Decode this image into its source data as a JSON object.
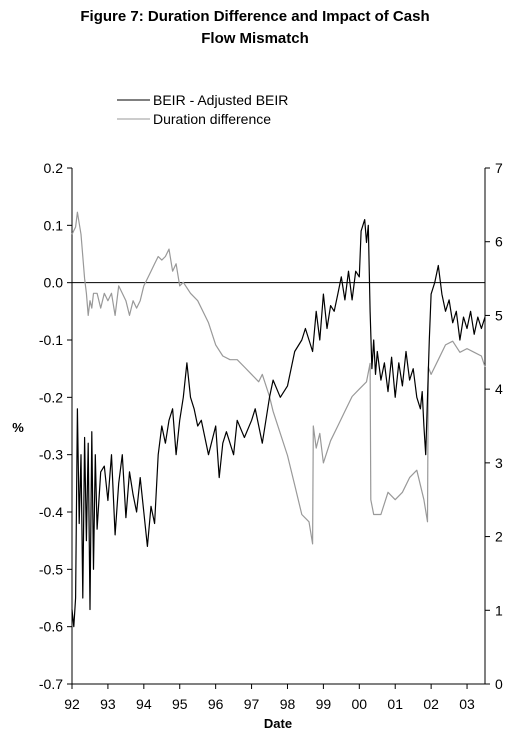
{
  "chart_data": {
    "type": "line",
    "title_line1": "Figure 7: Duration Difference and Impact of Cash",
    "title_line2": "Flow Mismatch",
    "xlabel": "Date",
    "ylabel": "%",
    "x_ticks": [
      "92",
      "93",
      "94",
      "95",
      "96",
      "97",
      "98",
      "99",
      "00",
      "01",
      "02",
      "03"
    ],
    "x_tick_years": [
      1992,
      1993,
      1994,
      1995,
      1996,
      1997,
      1998,
      1999,
      2000,
      2001,
      2002,
      2003
    ],
    "xlim": [
      1992,
      2003.5
    ],
    "left_ylim": [
      -0.7,
      0.2
    ],
    "left_ticks": [
      "0.2",
      "0.1",
      "0.0",
      "-0.1",
      "-0.2",
      "-0.3",
      "-0.4",
      "-0.5",
      "-0.6",
      "-0.7"
    ],
    "left_tick_values": [
      0.2,
      0.1,
      0.0,
      -0.1,
      -0.2,
      -0.3,
      -0.4,
      -0.5,
      -0.6,
      -0.7
    ],
    "right_ylim": [
      0,
      7
    ],
    "right_ticks": [
      "7",
      "6",
      "5",
      "4",
      "3",
      "2",
      "1",
      "0"
    ],
    "right_tick_values": [
      7,
      6,
      5,
      4,
      3,
      2,
      1,
      0
    ],
    "legend": [
      "BEIR - Adjusted BEIR",
      "Duration difference"
    ],
    "series": [
      {
        "name": "BEIR - Adjusted BEIR",
        "axis": "left",
        "color": "#000000",
        "x": [
          1992.0,
          1992.05,
          1992.1,
          1992.15,
          1992.2,
          1992.25,
          1992.3,
          1992.35,
          1992.4,
          1992.45,
          1992.5,
          1992.55,
          1992.6,
          1992.65,
          1992.7,
          1992.8,
          1992.9,
          1993.0,
          1993.1,
          1993.2,
          1993.3,
          1993.4,
          1993.5,
          1993.6,
          1993.7,
          1993.8,
          1993.9,
          1994.0,
          1994.1,
          1994.2,
          1994.3,
          1994.4,
          1994.5,
          1994.6,
          1994.7,
          1994.8,
          1994.9,
          1995.0,
          1995.1,
          1995.2,
          1995.3,
          1995.4,
          1995.5,
          1995.6,
          1995.8,
          1996.0,
          1996.1,
          1996.2,
          1996.3,
          1996.5,
          1996.6,
          1996.8,
          1997.0,
          1997.1,
          1997.3,
          1997.5,
          1997.6,
          1997.8,
          1998.0,
          1998.2,
          1998.4,
          1998.5,
          1998.6,
          1998.7,
          1998.8,
          1998.9,
          1999.0,
          1999.1,
          1999.2,
          1999.3,
          1999.4,
          1999.5,
          1999.6,
          1999.7,
          1999.8,
          1999.9,
          2000.0,
          2000.05,
          2000.1,
          2000.15,
          2000.2,
          2000.25,
          2000.3,
          2000.35,
          2000.4,
          2000.45,
          2000.5,
          2000.6,
          2000.7,
          2000.8,
          2000.9,
          2001.0,
          2001.1,
          2001.2,
          2001.3,
          2001.4,
          2001.5,
          2001.6,
          2001.7,
          2001.75,
          2001.8,
          2001.85,
          2001.9,
          2001.95,
          2002.0,
          2002.1,
          2002.2,
          2002.3,
          2002.4,
          2002.5,
          2002.6,
          2002.7,
          2002.8,
          2002.9,
          2003.0,
          2003.1,
          2003.2,
          2003.3,
          2003.4,
          2003.5
        ],
        "values": [
          -0.57,
          -0.6,
          -0.55,
          -0.22,
          -0.42,
          -0.3,
          -0.55,
          -0.27,
          -0.45,
          -0.28,
          -0.57,
          -0.26,
          -0.5,
          -0.3,
          -0.43,
          -0.33,
          -0.32,
          -0.38,
          -0.3,
          -0.44,
          -0.35,
          -0.3,
          -0.41,
          -0.33,
          -0.37,
          -0.4,
          -0.34,
          -0.4,
          -0.46,
          -0.39,
          -0.42,
          -0.3,
          -0.25,
          -0.28,
          -0.24,
          -0.22,
          -0.3,
          -0.24,
          -0.2,
          -0.14,
          -0.2,
          -0.22,
          -0.25,
          -0.24,
          -0.3,
          -0.25,
          -0.34,
          -0.28,
          -0.26,
          -0.3,
          -0.24,
          -0.27,
          -0.24,
          -0.22,
          -0.28,
          -0.2,
          -0.17,
          -0.2,
          -0.18,
          -0.12,
          -0.1,
          -0.08,
          -0.1,
          -0.12,
          -0.05,
          -0.1,
          -0.02,
          -0.08,
          -0.04,
          -0.05,
          -0.02,
          0.01,
          -0.03,
          0.02,
          -0.03,
          0.02,
          0.01,
          0.09,
          0.1,
          0.11,
          0.07,
          0.1,
          -0.05,
          -0.15,
          -0.1,
          -0.16,
          -0.12,
          -0.17,
          -0.14,
          -0.19,
          -0.13,
          -0.2,
          -0.14,
          -0.18,
          -0.12,
          -0.17,
          -0.15,
          -0.2,
          -0.22,
          -0.19,
          -0.25,
          -0.3,
          -0.2,
          -0.1,
          -0.02,
          0.0,
          0.03,
          -0.02,
          -0.05,
          -0.03,
          -0.07,
          -0.05,
          -0.1,
          -0.06,
          -0.08,
          -0.05,
          -0.09,
          -0.06,
          -0.08,
          -0.06
        ]
      },
      {
        "name": "Duration difference",
        "axis": "right",
        "color": "#999999",
        "x": [
          1992.0,
          1992.1,
          1992.15,
          1992.2,
          1992.25,
          1992.3,
          1992.35,
          1992.4,
          1992.45,
          1992.5,
          1992.55,
          1992.6,
          1992.7,
          1992.8,
          1992.9,
          1993.0,
          1993.1,
          1993.2,
          1993.3,
          1993.4,
          1993.5,
          1993.6,
          1993.7,
          1993.8,
          1993.9,
          1994.0,
          1994.1,
          1994.2,
          1994.3,
          1994.4,
          1994.5,
          1994.6,
          1994.7,
          1994.8,
          1994.9,
          1995.0,
          1995.1,
          1995.3,
          1995.5,
          1995.7,
          1995.8,
          1996.0,
          1996.2,
          1996.4,
          1996.6,
          1996.8,
          1997.0,
          1997.2,
          1997.3,
          1997.5,
          1997.6,
          1997.8,
          1998.0,
          1998.2,
          1998.4,
          1998.6,
          1998.7,
          1998.72,
          1998.8,
          1998.9,
          1999.0,
          1999.2,
          1999.4,
          1999.6,
          1999.8,
          2000.0,
          2000.2,
          2000.3,
          2000.32,
          2000.4,
          2000.6,
          2000.8,
          2001.0,
          2001.2,
          2001.4,
          2001.6,
          2001.8,
          2001.9,
          2001.92,
          2002.0,
          2002.2,
          2002.4,
          2002.6,
          2002.8,
          2003.0,
          2003.2,
          2003.4,
          2003.5
        ],
        "values": [
          6.1,
          6.2,
          6.4,
          6.25,
          6.1,
          5.8,
          5.5,
          5.3,
          5.0,
          5.2,
          5.1,
          5.3,
          5.3,
          5.1,
          5.3,
          5.2,
          5.3,
          5.0,
          5.4,
          5.3,
          5.2,
          5.0,
          5.2,
          5.1,
          5.2,
          5.4,
          5.5,
          5.6,
          5.7,
          5.8,
          5.75,
          5.8,
          5.9,
          5.6,
          5.7,
          5.4,
          5.45,
          5.3,
          5.2,
          5.0,
          4.9,
          4.6,
          4.45,
          4.4,
          4.4,
          4.3,
          4.2,
          4.1,
          4.2,
          3.9,
          3.7,
          3.4,
          3.1,
          2.7,
          2.3,
          2.2,
          1.9,
          3.5,
          3.2,
          3.4,
          3.0,
          3.3,
          3.5,
          3.7,
          3.9,
          4.0,
          4.1,
          4.35,
          2.5,
          2.3,
          2.3,
          2.6,
          2.5,
          2.6,
          2.8,
          2.9,
          2.5,
          2.2,
          4.3,
          4.2,
          4.4,
          4.6,
          4.65,
          4.5,
          4.55,
          4.5,
          4.45,
          4.3
        ]
      }
    ]
  }
}
